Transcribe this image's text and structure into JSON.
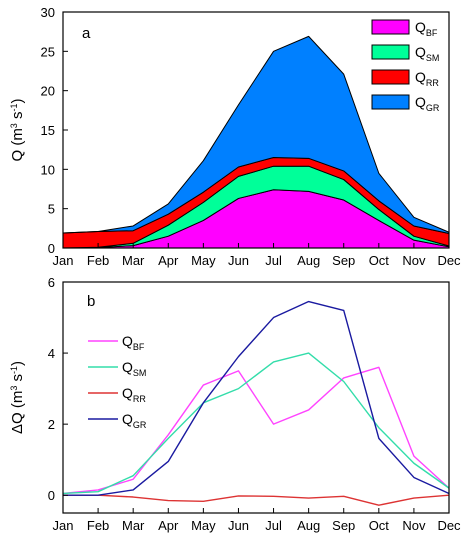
{
  "chart_data": [
    {
      "panel_label": "a",
      "type": "area",
      "stacked": true,
      "x": [
        "Jan",
        "Feb",
        "Mar",
        "Apr",
        "May",
        "Jun",
        "Jul",
        "Aug",
        "Sep",
        "Oct",
        "Nov",
        "Dec"
      ],
      "ylim": [
        0,
        30
      ],
      "yticks": [
        "0",
        "5",
        "10",
        "15",
        "20",
        "25",
        "30"
      ],
      "ylabel": {
        "main": "Q (m",
        "sup1": "3",
        "mid": " s",
        "sup2": "-1",
        "end": ")"
      },
      "legend_position": "top-right",
      "series": [
        {
          "key": "BF",
          "name": "Q",
          "sub": "BF",
          "color": "#ff00ff",
          "values": [
            0.0,
            0.05,
            0.3,
            1.5,
            3.5,
            6.3,
            7.4,
            7.2,
            6.1,
            3.5,
            1.0,
            0.15
          ]
        },
        {
          "key": "SM",
          "name": "Q",
          "sub": "SM",
          "color": "#00ff99",
          "values": [
            0.0,
            0.05,
            0.3,
            1.4,
            2.3,
            2.8,
            3.0,
            3.2,
            2.6,
            1.4,
            0.5,
            0.1
          ]
        },
        {
          "key": "RR",
          "name": "Q",
          "sub": "RR",
          "color": "#ff0000",
          "values": [
            1.9,
            2.0,
            1.6,
            1.4,
            1.3,
            1.2,
            1.1,
            1.0,
            1.1,
            1.1,
            1.3,
            1.6
          ]
        },
        {
          "key": "GR",
          "name": "Q",
          "sub": "GR",
          "color": "#0080ff",
          "values": [
            0.0,
            0.0,
            0.6,
            1.3,
            4.0,
            7.9,
            13.5,
            15.5,
            12.3,
            3.5,
            1.1,
            0.15
          ]
        }
      ]
    },
    {
      "panel_label": "b",
      "type": "line",
      "x": [
        "Jan",
        "Feb",
        "Mar",
        "Apr",
        "May",
        "Jun",
        "Jul",
        "Aug",
        "Sep",
        "Oct",
        "Nov",
        "Dec"
      ],
      "ylim": [
        -0.5,
        6
      ],
      "yticks": [
        "0",
        "2",
        "4",
        "6"
      ],
      "ylabel": {
        "main": "ΔQ (m",
        "sup1": "3",
        "mid": " s",
        "sup2": "-1",
        "end": ")"
      },
      "legend_position": "top-left",
      "series": [
        {
          "key": "BF",
          "name": "Q",
          "sub": "BF",
          "color": "#ff44ff",
          "values": [
            0.05,
            0.15,
            0.45,
            1.7,
            3.1,
            3.5,
            2.0,
            2.4,
            3.3,
            3.6,
            1.1,
            0.2
          ]
        },
        {
          "key": "SM",
          "name": "Q",
          "sub": "SM",
          "color": "#33ddaa",
          "values": [
            0.05,
            0.1,
            0.55,
            1.6,
            2.6,
            3.0,
            3.75,
            4.0,
            3.2,
            1.9,
            0.9,
            0.2
          ]
        },
        {
          "key": "RR",
          "name": "Q",
          "sub": "RR",
          "color": "#dd3333",
          "values": [
            0.0,
            0.0,
            -0.05,
            -0.15,
            -0.17,
            -0.02,
            -0.03,
            -0.08,
            -0.03,
            -0.28,
            -0.08,
            0.0
          ]
        },
        {
          "key": "GR",
          "name": "Q",
          "sub": "GR",
          "color": "#1a1aa0",
          "values": [
            0.0,
            0.0,
            0.15,
            0.95,
            2.6,
            3.9,
            5.0,
            5.45,
            5.2,
            1.6,
            0.5,
            0.05
          ]
        }
      ]
    }
  ]
}
